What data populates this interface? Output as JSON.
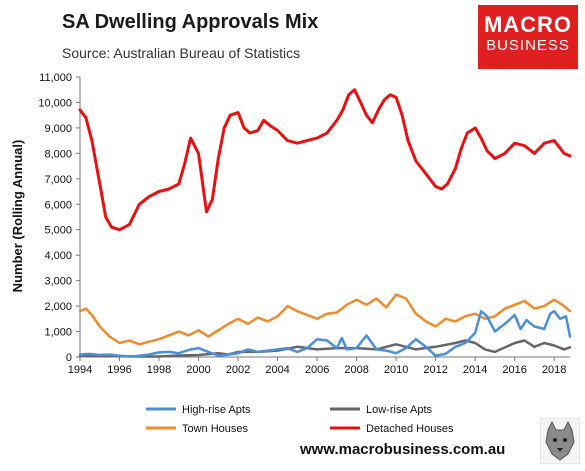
{
  "title": "SA Dwelling Approvals Mix",
  "subtitle": "Source: Australian Bureau of Statistics",
  "logo": {
    "line1": "MACRO",
    "line2": "BUSINESS",
    "color": "#e02020"
  },
  "footer_url": "www.macrobusiness.com.au",
  "wolf_icon": "wolf-logo-icon",
  "chart_data": {
    "type": "line",
    "title": "SA Dwelling Approvals Mix",
    "ylabel": "Number (Rolling Annual)",
    "xlabel": "",
    "xlim": [
      1994,
      2018.8
    ],
    "ylim": [
      0,
      11000
    ],
    "y_ticks": [
      "0",
      "1,000",
      "2,000",
      "3,000",
      "4,000",
      "5,000",
      "6,000",
      "7,000",
      "8,000",
      "9,000",
      "10,000",
      "11,000"
    ],
    "x_ticks": [
      "1994",
      "1996",
      "1998",
      "2000",
      "2002",
      "2004",
      "2006",
      "2008",
      "2010",
      "2012",
      "2014",
      "2016",
      "2018"
    ],
    "grid": false,
    "legend": "bottom",
    "series": [
      {
        "name": "High-rise Apts",
        "color": "#4a90d9",
        "x": [
          1994,
          1994.5,
          1995,
          1995.5,
          1996,
          1996.5,
          1997,
          1997.5,
          1998,
          1998.5,
          1999,
          1999.5,
          2000,
          2000.5,
          2001,
          2001.5,
          2002,
          2002.5,
          2003,
          2003.5,
          2004,
          2004.5,
          2005,
          2005.5,
          2006,
          2006.5,
          2007,
          2007.25,
          2007.5,
          2008,
          2008.5,
          2009,
          2009.5,
          2010,
          2010.5,
          2011,
          2011.5,
          2012,
          2012.5,
          2013,
          2013.5,
          2014,
          2014.3,
          2014.6,
          2015,
          2015.5,
          2016,
          2016.3,
          2016.6,
          2017,
          2017.5,
          2017.8,
          2018,
          2018.3,
          2018.6,
          2018.8
        ],
        "values": [
          100,
          120,
          80,
          100,
          50,
          20,
          50,
          100,
          180,
          200,
          150,
          280,
          350,
          200,
          50,
          100,
          150,
          300,
          200,
          250,
          300,
          350,
          200,
          350,
          700,
          650,
          350,
          750,
          300,
          350,
          850,
          300,
          250,
          150,
          350,
          700,
          400,
          50,
          120,
          400,
          550,
          950,
          1800,
          1600,
          1000,
          1300,
          1650,
          1100,
          1450,
          1200,
          1100,
          1700,
          1800,
          1500,
          1600,
          800
        ]
      },
      {
        "name": "Low-rise Apts",
        "color": "#666666",
        "x": [
          1994,
          1995,
          1996,
          1997,
          1998,
          1999,
          2000,
          2001,
          2001.5,
          2002,
          2003,
          2004,
          2005,
          2006,
          2007,
          2008,
          2009,
          2010,
          2011,
          2012,
          2013,
          2013.5,
          2014,
          2014.5,
          2015,
          2016,
          2016.5,
          2017,
          2017.5,
          2018,
          2018.5,
          2018.8
        ],
        "values": [
          50,
          40,
          30,
          20,
          20,
          60,
          80,
          150,
          100,
          200,
          200,
          250,
          400,
          300,
          350,
          350,
          300,
          500,
          300,
          400,
          550,
          650,
          550,
          300,
          200,
          550,
          650,
          400,
          550,
          450,
          300,
          380
        ]
      },
      {
        "name": "Town Houses",
        "color": "#f08a2a",
        "x": [
          1994,
          1994.3,
          1994.6,
          1995,
          1995.5,
          1996,
          1996.5,
          1997,
          1997.5,
          1998,
          1998.5,
          1999,
          1999.5,
          2000,
          2000.5,
          2001,
          2001.5,
          2002,
          2002.5,
          2003,
          2003.5,
          2004,
          2004.5,
          2005,
          2005.5,
          2006,
          2006.5,
          2007,
          2007.5,
          2008,
          2008.5,
          2009,
          2009.5,
          2010,
          2010.5,
          2011,
          2011.5,
          2012,
          2012.5,
          2013,
          2013.5,
          2014,
          2014.5,
          2015,
          2015.5,
          2016,
          2016.5,
          2017,
          2017.5,
          2018,
          2018.5,
          2018.8
        ],
        "values": [
          1800,
          1900,
          1650,
          1200,
          800,
          550,
          650,
          500,
          600,
          700,
          850,
          1000,
          850,
          1050,
          800,
          1050,
          1300,
          1500,
          1300,
          1550,
          1400,
          1600,
          2000,
          1800,
          1650,
          1500,
          1700,
          1750,
          2050,
          2250,
          2050,
          2300,
          1950,
          2450,
          2300,
          1700,
          1400,
          1200,
          1500,
          1400,
          1600,
          1700,
          1500,
          1600,
          1900,
          2050,
          2200,
          1900,
          2000,
          2250,
          2000,
          1800
        ]
      },
      {
        "name": "Detached Houses",
        "color": "#e81010",
        "x": [
          1994,
          1994.3,
          1994.6,
          1995,
          1995.3,
          1995.6,
          1996,
          1996.5,
          1997,
          1997.5,
          1998,
          1998.5,
          1999,
          1999.3,
          1999.6,
          2000,
          2000.4,
          2000.7,
          2001,
          2001.3,
          2001.6,
          2002,
          2002.3,
          2002.6,
          2003,
          2003.3,
          2003.6,
          2004,
          2004.5,
          2005,
          2005.5,
          2006,
          2006.5,
          2007,
          2007.3,
          2007.6,
          2007.9,
          2008.2,
          2008.5,
          2008.8,
          2009.1,
          2009.4,
          2009.7,
          2010,
          2010.3,
          2010.6,
          2011,
          2011.5,
          2012,
          2012.3,
          2012.6,
          2013,
          2013.3,
          2013.6,
          2014,
          2014.3,
          2014.6,
          2015,
          2015.5,
          2016,
          2016.5,
          2017,
          2017.5,
          2018,
          2018.5,
          2018.8
        ],
        "values": [
          9700,
          9400,
          8500,
          6800,
          5500,
          5100,
          5000,
          5200,
          6000,
          6300,
          6500,
          6600,
          6800,
          7600,
          8600,
          8000,
          5700,
          6200,
          7800,
          9000,
          9500,
          9600,
          9000,
          8800,
          8900,
          9300,
          9100,
          8900,
          8500,
          8400,
          8500,
          8600,
          8800,
          9300,
          9700,
          10300,
          10500,
          10000,
          9500,
          9200,
          9700,
          10100,
          10300,
          10200,
          9500,
          8500,
          7700,
          7200,
          6700,
          6600,
          6800,
          7400,
          8200,
          8800,
          9000,
          8600,
          8100,
          7800,
          8000,
          8400,
          8300,
          8000,
          8400,
          8500,
          8000,
          7900
        ]
      }
    ]
  }
}
